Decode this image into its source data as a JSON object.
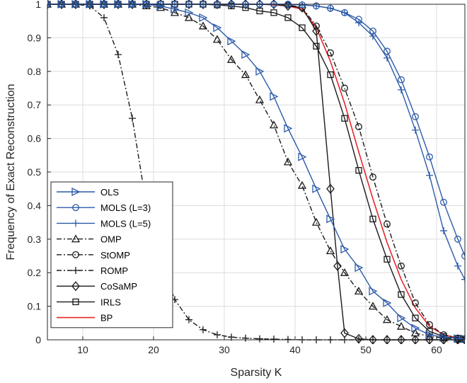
{
  "chart_data": {
    "type": "line",
    "xlabel": "Sparsity K",
    "ylabel": "Frequency of Exact Reconstruction",
    "xlim": [
      5,
      64
    ],
    "ylim": [
      0,
      1
    ],
    "xticks": [
      10,
      20,
      30,
      40,
      50,
      60
    ],
    "yticks": [
      0,
      0.1,
      0.2,
      0.3,
      0.4,
      0.5,
      0.6,
      0.7,
      0.8,
      0.9,
      1
    ],
    "grid": true,
    "legend_position": "lower-left",
    "series": [
      {
        "name": "OLS",
        "color": "#2c5aa8",
        "dash": "solid",
        "marker": "triangle-right",
        "x": [
          5,
          7,
          9,
          11,
          13,
          15,
          17,
          19,
          21,
          23,
          25,
          27,
          29,
          31,
          33,
          35,
          37,
          39,
          41,
          43,
          45,
          47,
          49,
          51,
          53,
          55,
          57,
          59,
          61,
          63,
          64
        ],
        "y": [
          1,
          1,
          1,
          1,
          1,
          1,
          1,
          1,
          0.995,
          0.985,
          0.975,
          0.96,
          0.93,
          0.89,
          0.85,
          0.8,
          0.725,
          0.63,
          0.545,
          0.45,
          0.36,
          0.27,
          0.215,
          0.145,
          0.11,
          0.065,
          0.035,
          0.015,
          0.008,
          0.004,
          0.003
        ]
      },
      {
        "name": "MOLS (L=3)",
        "color": "#2c5aa8",
        "dash": "solid",
        "marker": "circle",
        "x": [
          5,
          7,
          9,
          11,
          13,
          15,
          17,
          19,
          21,
          23,
          25,
          27,
          29,
          31,
          33,
          35,
          37,
          39,
          41,
          43,
          45,
          47,
          49,
          51,
          53,
          55,
          57,
          59,
          61,
          63,
          64
        ],
        "y": [
          1,
          1,
          1,
          1,
          1,
          1,
          1,
          1,
          1,
          1,
          1,
          1,
          1,
          1,
          1,
          1,
          1,
          1,
          0.998,
          0.995,
          0.988,
          0.975,
          0.955,
          0.92,
          0.86,
          0.775,
          0.665,
          0.545,
          0.41,
          0.3,
          0.25
        ]
      },
      {
        "name": "MOLS (L=5)",
        "color": "#2c5aa8",
        "dash": "solid",
        "marker": "plus",
        "x": [
          5,
          7,
          9,
          11,
          13,
          15,
          17,
          19,
          21,
          23,
          25,
          27,
          29,
          31,
          33,
          35,
          37,
          39,
          41,
          43,
          45,
          47,
          49,
          51,
          53,
          55,
          57,
          59,
          61,
          63,
          64
        ],
        "y": [
          1,
          1,
          1,
          1,
          1,
          1,
          1,
          1,
          1,
          1,
          1,
          1,
          1,
          1,
          1,
          1,
          1,
          1,
          0.998,
          0.995,
          0.988,
          0.975,
          0.945,
          0.905,
          0.84,
          0.745,
          0.625,
          0.49,
          0.325,
          0.22,
          0.18
        ]
      },
      {
        "name": "OMP",
        "color": "#1a1a1a",
        "dash": "dashdot",
        "marker": "triangle-up",
        "x": [
          5,
          7,
          9,
          11,
          13,
          15,
          17,
          19,
          21,
          23,
          25,
          27,
          29,
          31,
          33,
          35,
          37,
          39,
          41,
          43,
          45,
          47,
          49,
          51,
          53,
          55,
          57,
          59,
          61,
          63,
          64
        ],
        "y": [
          1,
          1,
          1,
          1,
          1,
          1,
          1,
          0.995,
          0.99,
          0.975,
          0.96,
          0.935,
          0.895,
          0.835,
          0.79,
          0.715,
          0.64,
          0.53,
          0.46,
          0.35,
          0.265,
          0.2,
          0.145,
          0.1,
          0.06,
          0.04,
          0.02,
          0.01,
          0.005,
          0.002,
          0.001
        ]
      },
      {
        "name": "StOMP",
        "color": "#1a1a1a",
        "dash": "dashdot",
        "marker": "circle",
        "x": [
          5,
          7,
          9,
          11,
          13,
          15,
          17,
          19,
          21,
          23,
          25,
          27,
          29,
          31,
          33,
          35,
          37,
          39,
          41,
          43,
          45,
          47,
          49,
          51,
          53,
          55,
          57,
          59,
          61,
          63,
          64
        ],
        "y": [
          1,
          1,
          1,
          1,
          1,
          1,
          1,
          1,
          1,
          1,
          1,
          1,
          1,
          1,
          1,
          1,
          1,
          0.998,
          0.99,
          0.935,
          0.855,
          0.75,
          0.635,
          0.485,
          0.345,
          0.22,
          0.11,
          0.045,
          0.015,
          0.005,
          0.003
        ]
      },
      {
        "name": "ROMP",
        "color": "#1a1a1a",
        "dash": "dashdot",
        "marker": "plus",
        "x": [
          5,
          7,
          9,
          11,
          13,
          15,
          17,
          19,
          21,
          23,
          25,
          27,
          29,
          31,
          33,
          35,
          37,
          39,
          41,
          43,
          45,
          47,
          49,
          51,
          53,
          55,
          57,
          59,
          61,
          63,
          64
        ],
        "y": [
          1,
          1,
          1,
          0.995,
          0.96,
          0.85,
          0.66,
          0.4,
          0.24,
          0.12,
          0.06,
          0.03,
          0.015,
          0.008,
          0.005,
          0.003,
          0.002,
          0.001,
          0,
          0,
          0,
          0,
          0,
          0,
          0,
          0,
          0,
          0,
          0,
          0,
          0
        ]
      },
      {
        "name": "CoSaMP",
        "color": "#1a1a1a",
        "dash": "solid",
        "marker": "diamond",
        "x": [
          5,
          7,
          9,
          11,
          13,
          15,
          17,
          19,
          21,
          23,
          25,
          27,
          29,
          31,
          33,
          35,
          37,
          39,
          41,
          43,
          45,
          46,
          47,
          49,
          51,
          53,
          55,
          57,
          59,
          61,
          63,
          64
        ],
        "y": [
          1,
          1,
          1,
          1,
          1,
          1,
          1,
          1,
          1,
          1,
          1,
          1,
          1,
          1,
          1,
          1,
          1,
          0.995,
          0.99,
          0.92,
          0.45,
          0.22,
          0.02,
          0.003,
          0,
          0,
          0,
          0,
          0,
          0,
          0,
          0
        ]
      },
      {
        "name": "IRLS",
        "color": "#1a1a1a",
        "dash": "solid",
        "marker": "square",
        "x": [
          5,
          7,
          9,
          11,
          13,
          15,
          17,
          19,
          21,
          23,
          25,
          27,
          29,
          31,
          33,
          35,
          37,
          39,
          41,
          43,
          45,
          47,
          49,
          51,
          53,
          55,
          57,
          59,
          61,
          63,
          64
        ],
        "y": [
          1,
          1,
          1,
          1,
          1,
          1,
          1,
          1,
          1,
          1,
          1,
          1,
          0.998,
          0.995,
          0.99,
          0.98,
          0.975,
          0.96,
          0.93,
          0.875,
          0.79,
          0.66,
          0.505,
          0.36,
          0.24,
          0.135,
          0.065,
          0.025,
          0.01,
          0.004,
          0.002
        ]
      },
      {
        "name": "BP",
        "color": "#e8262a",
        "dash": "solid",
        "marker": "none",
        "x": [
          5,
          7,
          9,
          11,
          13,
          15,
          17,
          19,
          21,
          23,
          25,
          27,
          29,
          31,
          33,
          35,
          37,
          39,
          41,
          43,
          45,
          47,
          49,
          51,
          53,
          55,
          57,
          59,
          61,
          63,
          64
        ],
        "y": [
          1,
          1,
          1,
          1,
          1,
          1,
          1,
          1,
          1,
          1,
          1,
          1,
          1,
          1,
          1,
          1,
          0.998,
          0.995,
          0.985,
          0.93,
          0.83,
          0.705,
          0.56,
          0.42,
          0.29,
          0.18,
          0.095,
          0.04,
          0.015,
          0.006,
          0.004
        ]
      }
    ]
  }
}
